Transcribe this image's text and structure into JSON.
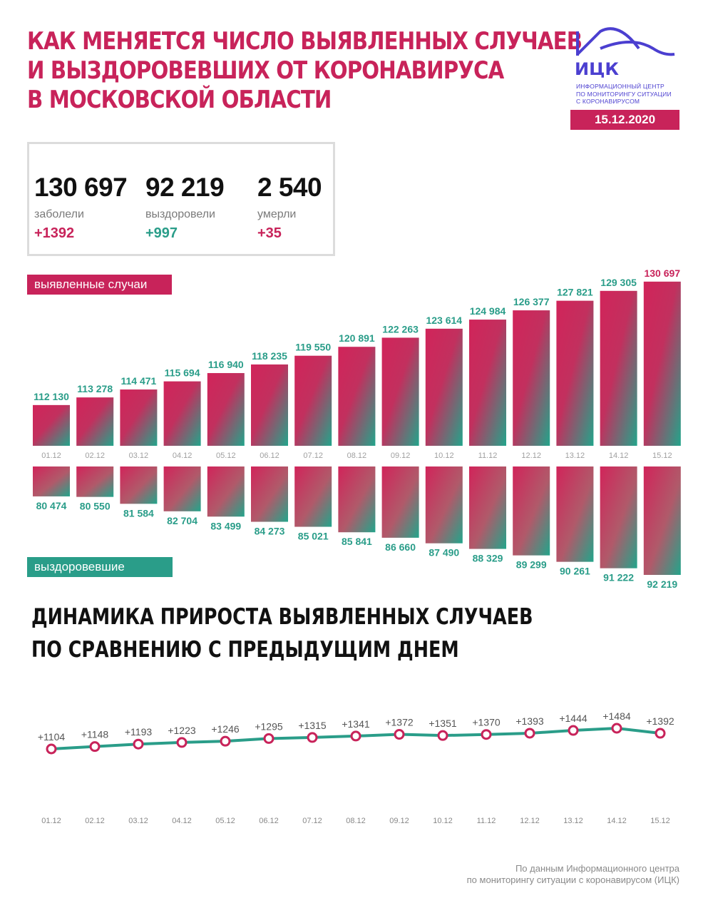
{
  "header": {
    "title_lines": [
      "КАК МЕНЯЕТСЯ ЧИСЛО ВЫЯВЛЕННЫХ СЛУЧАЕВ",
      "И ВЫЗДОРОВЕВШИХ ОТ КОРОНАВИРУСА",
      "В МОСКОВСКОЙ ОБЛАСТИ"
    ],
    "logo_text": "ИЦК",
    "logo_sub_lines": [
      "ИНФОРМАЦИОННЫЙ ЦЕНТР",
      "ПО МОНИТОРИНГУ СИТУАЦИИ",
      "С КОРОНАВИРУСОМ"
    ],
    "date": "15.12.2020"
  },
  "stats": {
    "sick": {
      "value": "130 697",
      "label": "заболели",
      "delta": "+1392"
    },
    "recovered": {
      "value": "92 219",
      "label": "выздоровели",
      "delta": "+997"
    },
    "died": {
      "value": "2 540",
      "label": "умерли",
      "delta": "+35"
    }
  },
  "sections": {
    "cases_label": "выявленные случаи",
    "recovered_label": "выздоровевшие",
    "growth_title_lines": [
      "ДИНАМИКА ПРИРОСТА ВЫЯВЛЕННЫХ СЛУЧАЕВ",
      "ПО СРАВНЕНИЮ С ПРЕДЫДУЩИМ ДНЕМ"
    ]
  },
  "footer": {
    "lines": [
      "По данным Информационного центра",
      "по мониторингу ситуации с коронавирусом (ИЦК)"
    ]
  },
  "colors": {
    "accent": "#c8235a",
    "green": "#2a9d89",
    "logo": "#4b3fd0"
  },
  "chart_data": [
    {
      "type": "bar",
      "categories": [
        "01.12",
        "02.12",
        "03.12",
        "04.12",
        "05.12",
        "06.12",
        "07.12",
        "08.12",
        "09.12",
        "10.12",
        "11.12",
        "12.12",
        "13.12",
        "14.12",
        "15.12"
      ],
      "values": [
        112130,
        113278,
        114471,
        115694,
        116940,
        118235,
        119550,
        120891,
        122263,
        123614,
        124984,
        126377,
        127821,
        129305,
        130697
      ],
      "value_labels": [
        "112 130",
        "113 278",
        "114 471",
        "115 694",
        "116 940",
        "118 235",
        "119 550",
        "120 891",
        "122 263",
        "123 614",
        "124 984",
        "126 377",
        "127 821",
        "129 305",
        "130 697"
      ]
    },
    {
      "type": "bar",
      "categories": [
        "01.12",
        "02.12",
        "03.12",
        "04.12",
        "05.12",
        "06.12",
        "07.12",
        "08.12",
        "09.12",
        "10.12",
        "11.12",
        "12.12",
        "13.12",
        "14.12",
        "15.12"
      ],
      "values": [
        80474,
        80550,
        81584,
        82704,
        83499,
        84273,
        85021,
        85841,
        86660,
        87490,
        88329,
        89299,
        90261,
        91222,
        92219
      ],
      "value_labels": [
        "80 474",
        "80 550",
        "81 584",
        "82 704",
        "83 499",
        "84 273",
        "85 021",
        "85 841",
        "86 660",
        "87 490",
        "88 329",
        "89 299",
        "90 261",
        "91 222",
        "92 219"
      ]
    },
    {
      "type": "line",
      "x": [
        "01.12",
        "02.12",
        "03.12",
        "04.12",
        "05.12",
        "06.12",
        "07.12",
        "08.12",
        "09.12",
        "10.12",
        "11.12",
        "12.12",
        "13.12",
        "14.12",
        "15.12"
      ],
      "values": [
        1104,
        1148,
        1193,
        1223,
        1246,
        1295,
        1315,
        1341,
        1372,
        1351,
        1370,
        1393,
        1444,
        1484,
        1392
      ],
      "value_labels": [
        "+1104",
        "+1148",
        "+1193",
        "+1223",
        "+1246",
        "+1295",
        "+1315",
        "+1341",
        "+1372",
        "+1351",
        "+1370",
        "+1393",
        "+1444",
        "+1484",
        "+1392"
      ]
    }
  ]
}
